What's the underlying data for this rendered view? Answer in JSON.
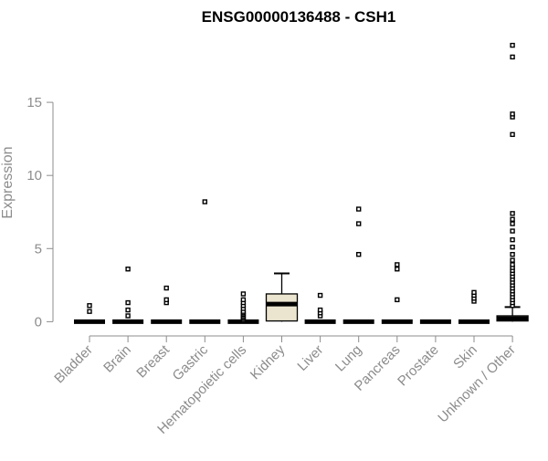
{
  "chart_data": {
    "type": "box",
    "title": "ENSG00000136488 - CSH1",
    "xlabel": "",
    "ylabel": "Expression",
    "ylim": [
      -0.6,
      19.5
    ],
    "yticks": [
      0,
      5,
      10,
      15
    ],
    "grid": false,
    "colors": {
      "axis": "#8c8c8c",
      "box_fill": "#ebe4cf",
      "box_stroke": "#000000",
      "median": "#000000",
      "outlier": "#000000"
    },
    "categories": [
      "Bladder",
      "Brain",
      "Breast",
      "Gastric",
      "Hematopoietic cells",
      "Kidney",
      "Liver",
      "Lung",
      "Pancreas",
      "Prostate",
      "Skin",
      "Unknown / Other"
    ],
    "boxes": [
      {
        "category": "Bladder",
        "min": 0,
        "q1": 0,
        "median": 0,
        "q3": 0,
        "max": 0,
        "outliers": [
          0.7,
          1.1
        ]
      },
      {
        "category": "Brain",
        "min": 0,
        "q1": 0,
        "median": 0,
        "q3": 0,
        "max": 0,
        "outliers": [
          0.4,
          0.8,
          1.3,
          3.6
        ]
      },
      {
        "category": "Breast",
        "min": 0,
        "q1": 0,
        "median": 0,
        "q3": 0,
        "max": 0,
        "outliers": [
          1.3,
          1.5,
          2.3
        ]
      },
      {
        "category": "Gastric",
        "min": 0,
        "q1": 0,
        "median": 0,
        "q3": 0,
        "max": 0,
        "outliers": [
          8.2
        ]
      },
      {
        "category": "Hematopoietic cells",
        "min": 0,
        "q1": 0,
        "median": 0,
        "q3": 0,
        "max": 0,
        "outliers": [
          0.1,
          0.2,
          0.3,
          0.4,
          0.5,
          0.6,
          0.7,
          0.9,
          1.1,
          1.3,
          1.5,
          1.9
        ]
      },
      {
        "category": "Kidney",
        "min": 0,
        "q1": 0.05,
        "median": 1.2,
        "q3": 1.9,
        "max": 3.3,
        "outliers": []
      },
      {
        "category": "Liver",
        "min": 0,
        "q1": 0,
        "median": 0,
        "q3": 0,
        "max": 0,
        "outliers": [
          0.4,
          0.6,
          0.8,
          1.8
        ]
      },
      {
        "category": "Lung",
        "min": 0,
        "q1": 0,
        "median": 0,
        "q3": 0,
        "max": 0,
        "outliers": [
          4.6,
          6.7,
          7.7
        ]
      },
      {
        "category": "Pancreas",
        "min": 0,
        "q1": 0,
        "median": 0,
        "q3": 0,
        "max": 0,
        "outliers": [
          1.5,
          3.6,
          3.9
        ]
      },
      {
        "category": "Prostate",
        "min": 0,
        "q1": 0,
        "median": 0,
        "q3": 0,
        "max": 0,
        "outliers": []
      },
      {
        "category": "Skin",
        "min": 0,
        "q1": 0,
        "median": 0,
        "q3": 0,
        "max": 0,
        "outliers": [
          1.4,
          1.6,
          1.8,
          2.0
        ]
      },
      {
        "category": "Unknown / Other",
        "min": 0,
        "q1": 0.05,
        "median": 0.2,
        "q3": 0.4,
        "max": 1.0,
        "outliers": [
          1.1,
          1.3,
          1.5,
          1.7,
          1.9,
          2.1,
          2.3,
          2.5,
          2.7,
          2.9,
          3.1,
          3.3,
          3.5,
          3.7,
          3.9,
          4.2,
          4.6,
          5.1,
          5.6,
          6.2,
          6.7,
          7.0,
          7.4,
          12.8,
          14.0,
          14.2,
          18.1,
          18.9
        ]
      }
    ]
  }
}
